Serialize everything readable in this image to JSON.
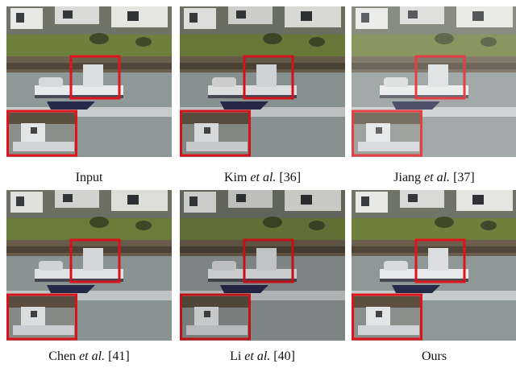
{
  "panels": [
    {
      "caption": [
        "Input"
      ]
    },
    {
      "caption": [
        "Kim",
        "et al.",
        "[36]"
      ]
    },
    {
      "caption": [
        "Jiang",
        "et al.",
        "[37]"
      ]
    },
    {
      "caption": [
        "Chen",
        "et al.",
        "[41]"
      ]
    },
    {
      "caption": [
        "Li",
        "et al.",
        "[40]"
      ]
    },
    {
      "caption": [
        "Ours"
      ]
    }
  ]
}
